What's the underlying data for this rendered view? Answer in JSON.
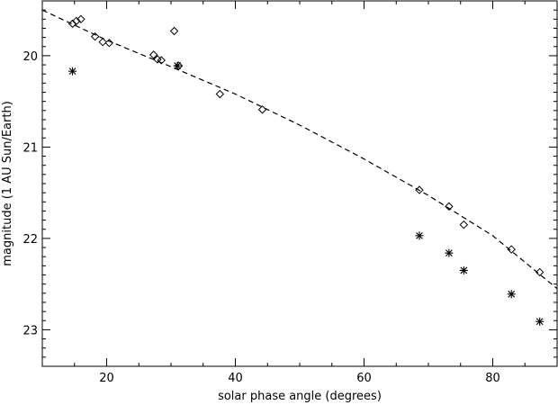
{
  "chart_data": {
    "type": "scatter",
    "title": "",
    "xlabel": "solar phase angle (degrees)",
    "ylabel": "magnitude (1 AU Sun/Earth)",
    "xlim": [
      10,
      90
    ],
    "ylim": [
      23.4,
      19.4
    ],
    "y_inverted": true,
    "grid": false,
    "x_ticks": [
      20,
      40,
      60,
      80
    ],
    "y_ticks": [
      20,
      21,
      22,
      23
    ],
    "series": [
      {
        "marker": "diamond",
        "points": [
          {
            "x": 14.7,
            "y": 19.65
          },
          {
            "x": 15.3,
            "y": 19.62
          },
          {
            "x": 16.0,
            "y": 19.6
          },
          {
            "x": 18.2,
            "y": 19.79
          },
          {
            "x": 19.4,
            "y": 19.85
          },
          {
            "x": 20.4,
            "y": 19.86
          },
          {
            "x": 27.3,
            "y": 19.99
          },
          {
            "x": 27.9,
            "y": 20.04
          },
          {
            "x": 28.5,
            "y": 20.05
          },
          {
            "x": 30.5,
            "y": 19.73
          },
          {
            "x": 31.2,
            "y": 20.11
          },
          {
            "x": 37.6,
            "y": 20.42
          },
          {
            "x": 44.2,
            "y": 20.59
          },
          {
            "x": 68.6,
            "y": 21.47
          },
          {
            "x": 73.2,
            "y": 21.65
          },
          {
            "x": 75.5,
            "y": 21.85
          },
          {
            "x": 82.9,
            "y": 22.12
          },
          {
            "x": 87.3,
            "y": 22.37
          }
        ]
      },
      {
        "marker": "asterisk",
        "points": [
          {
            "x": 14.7,
            "y": 20.17
          },
          {
            "x": 31.0,
            "y": 20.11
          },
          {
            "x": 68.6,
            "y": 21.97
          },
          {
            "x": 73.2,
            "y": 22.16
          },
          {
            "x": 75.5,
            "y": 22.35
          },
          {
            "x": 82.9,
            "y": 22.61
          },
          {
            "x": 87.3,
            "y": 22.91
          }
        ]
      },
      {
        "style": "dashed-line",
        "points": [
          {
            "x": 10,
            "y": 19.5
          },
          {
            "x": 20,
            "y": 19.83
          },
          {
            "x": 30,
            "y": 20.12
          },
          {
            "x": 40,
            "y": 20.42
          },
          {
            "x": 50,
            "y": 20.76
          },
          {
            "x": 60,
            "y": 21.13
          },
          {
            "x": 70,
            "y": 21.53
          },
          {
            "x": 80,
            "y": 21.97
          },
          {
            "x": 90,
            "y": 22.55
          }
        ]
      }
    ]
  }
}
